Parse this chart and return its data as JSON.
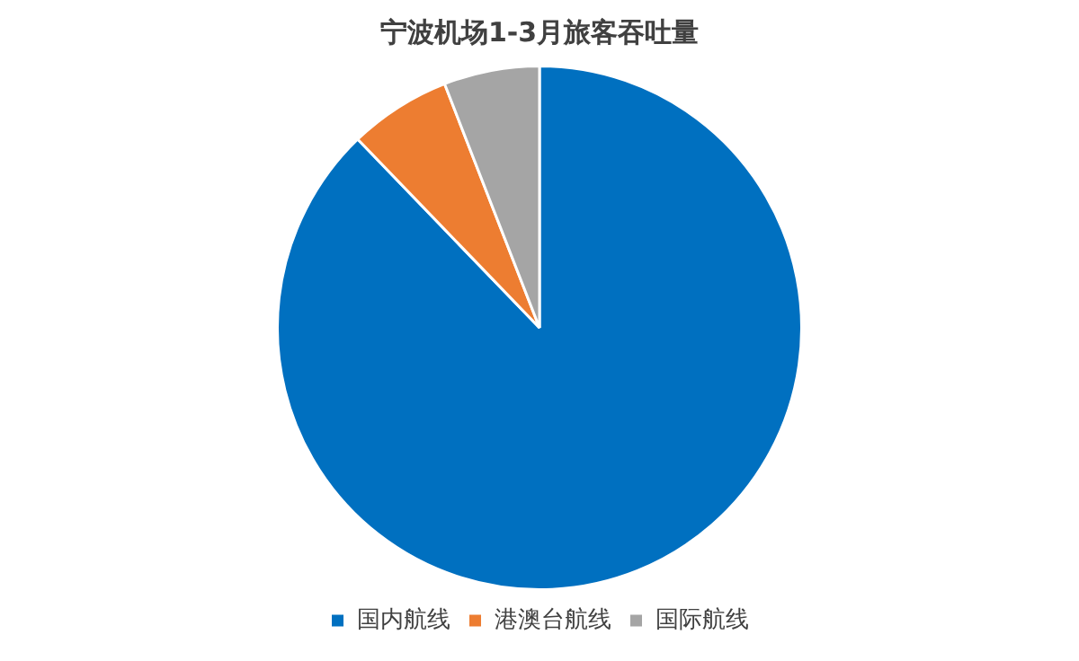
{
  "chart_data": {
    "type": "pie",
    "title": "宁波机场1-3月旅客吞吐量",
    "categories": [
      "国内航线",
      "港澳台航线",
      "国际航线"
    ],
    "values": [
      87.8,
      6.3,
      5.9
    ],
    "colors": [
      "#0070c0",
      "#ed7d31",
      "#a5a5a5"
    ],
    "legend": "bottom"
  }
}
